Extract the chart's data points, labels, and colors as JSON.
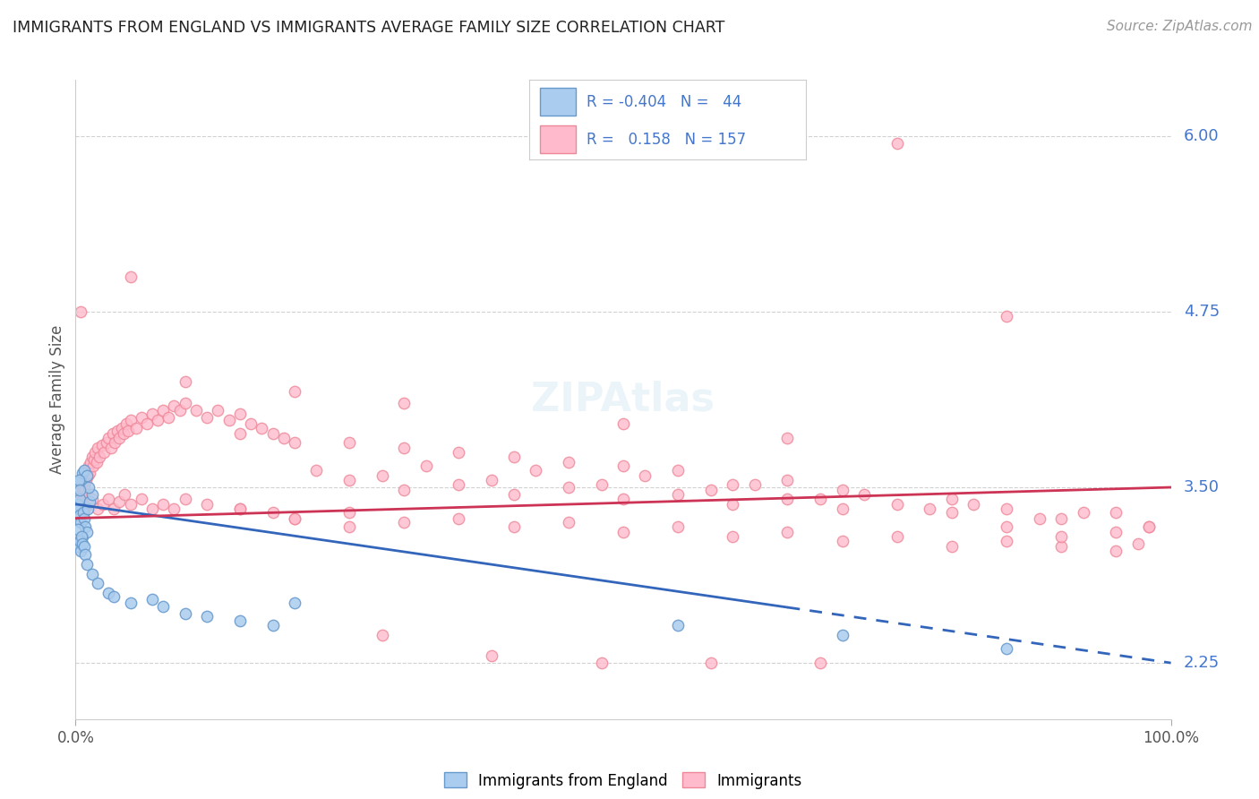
{
  "title": "IMMIGRANTS FROM ENGLAND VS IMMIGRANTS AVERAGE FAMILY SIZE CORRELATION CHART",
  "source": "Source: ZipAtlas.com",
  "ylabel": "Average Family Size",
  "xlim": [
    0,
    100
  ],
  "ylim": [
    1.85,
    6.4
  ],
  "yticks": [
    2.25,
    3.5,
    4.75,
    6.0
  ],
  "blue_R": -0.404,
  "blue_N": 44,
  "pink_R": 0.158,
  "pink_N": 157,
  "blue_scatter": [
    [
      0.2,
      3.38
    ],
    [
      0.3,
      3.35
    ],
    [
      0.35,
      3.42
    ],
    [
      0.4,
      3.3
    ],
    [
      0.5,
      3.25
    ],
    [
      0.6,
      3.15
    ],
    [
      0.7,
      3.32
    ],
    [
      0.8,
      3.28
    ],
    [
      0.9,
      3.22
    ],
    [
      1.0,
      3.18
    ],
    [
      1.1,
      3.35
    ],
    [
      1.3,
      3.4
    ],
    [
      1.5,
      3.45
    ],
    [
      0.5,
      3.55
    ],
    [
      0.6,
      3.6
    ],
    [
      0.8,
      3.62
    ],
    [
      1.0,
      3.58
    ],
    [
      1.2,
      3.5
    ],
    [
      0.3,
      3.55
    ],
    [
      0.4,
      3.48
    ],
    [
      0.2,
      3.2
    ],
    [
      0.25,
      3.08
    ],
    [
      0.35,
      3.12
    ],
    [
      0.45,
      3.05
    ],
    [
      0.55,
      3.15
    ],
    [
      0.65,
      3.1
    ],
    [
      0.75,
      3.08
    ],
    [
      0.85,
      3.02
    ],
    [
      1.0,
      2.95
    ],
    [
      1.5,
      2.88
    ],
    [
      2.0,
      2.82
    ],
    [
      3.0,
      2.75
    ],
    [
      3.5,
      2.72
    ],
    [
      5.0,
      2.68
    ],
    [
      7.0,
      2.7
    ],
    [
      8.0,
      2.65
    ],
    [
      10.0,
      2.6
    ],
    [
      12.0,
      2.58
    ],
    [
      15.0,
      2.55
    ],
    [
      18.0,
      2.52
    ],
    [
      20.0,
      2.68
    ],
    [
      55.0,
      2.52
    ],
    [
      70.0,
      2.45
    ],
    [
      85.0,
      2.35
    ]
  ],
  "pink_scatter": [
    [
      0.1,
      3.3
    ],
    [
      0.15,
      3.35
    ],
    [
      0.2,
      3.4
    ],
    [
      0.25,
      3.32
    ],
    [
      0.3,
      3.45
    ],
    [
      0.35,
      3.38
    ],
    [
      0.4,
      3.42
    ],
    [
      0.45,
      3.5
    ],
    [
      0.5,
      3.48
    ],
    [
      0.55,
      3.52
    ],
    [
      0.6,
      3.45
    ],
    [
      0.65,
      3.55
    ],
    [
      0.7,
      3.5
    ],
    [
      0.75,
      3.58
    ],
    [
      0.8,
      3.52
    ],
    [
      0.85,
      3.6
    ],
    [
      0.9,
      3.48
    ],
    [
      0.95,
      3.55
    ],
    [
      1.0,
      3.62
    ],
    [
      1.1,
      3.58
    ],
    [
      1.2,
      3.65
    ],
    [
      1.3,
      3.6
    ],
    [
      1.4,
      3.68
    ],
    [
      1.5,
      3.72
    ],
    [
      1.6,
      3.65
    ],
    [
      1.7,
      3.7
    ],
    [
      1.8,
      3.75
    ],
    [
      1.9,
      3.68
    ],
    [
      2.0,
      3.78
    ],
    [
      2.2,
      3.72
    ],
    [
      2.4,
      3.8
    ],
    [
      2.6,
      3.75
    ],
    [
      2.8,
      3.82
    ],
    [
      3.0,
      3.85
    ],
    [
      3.2,
      3.78
    ],
    [
      3.4,
      3.88
    ],
    [
      3.6,
      3.82
    ],
    [
      3.8,
      3.9
    ],
    [
      4.0,
      3.85
    ],
    [
      4.2,
      3.92
    ],
    [
      4.4,
      3.88
    ],
    [
      4.6,
      3.95
    ],
    [
      4.8,
      3.9
    ],
    [
      5.0,
      3.98
    ],
    [
      5.5,
      3.92
    ],
    [
      6.0,
      4.0
    ],
    [
      6.5,
      3.95
    ],
    [
      7.0,
      4.02
    ],
    [
      7.5,
      3.98
    ],
    [
      8.0,
      4.05
    ],
    [
      8.5,
      4.0
    ],
    [
      9.0,
      4.08
    ],
    [
      9.5,
      4.05
    ],
    [
      10.0,
      4.1
    ],
    [
      11.0,
      4.05
    ],
    [
      12.0,
      4.0
    ],
    [
      13.0,
      4.05
    ],
    [
      14.0,
      3.98
    ],
    [
      15.0,
      4.02
    ],
    [
      16.0,
      3.95
    ],
    [
      17.0,
      3.92
    ],
    [
      18.0,
      3.88
    ],
    [
      19.0,
      3.85
    ],
    [
      20.0,
      3.82
    ],
    [
      0.2,
      3.32
    ],
    [
      0.3,
      3.28
    ],
    [
      0.4,
      3.35
    ],
    [
      0.5,
      3.3
    ],
    [
      0.6,
      3.38
    ],
    [
      0.7,
      3.42
    ],
    [
      0.8,
      3.35
    ],
    [
      0.9,
      3.4
    ],
    [
      1.0,
      3.45
    ],
    [
      1.2,
      3.38
    ],
    [
      1.5,
      3.42
    ],
    [
      2.0,
      3.35
    ],
    [
      2.5,
      3.38
    ],
    [
      3.0,
      3.42
    ],
    [
      3.5,
      3.35
    ],
    [
      4.0,
      3.4
    ],
    [
      4.5,
      3.45
    ],
    [
      5.0,
      3.38
    ],
    [
      6.0,
      3.42
    ],
    [
      7.0,
      3.35
    ],
    [
      8.0,
      3.38
    ],
    [
      9.0,
      3.35
    ],
    [
      10.0,
      3.42
    ],
    [
      12.0,
      3.38
    ],
    [
      15.0,
      3.35
    ],
    [
      18.0,
      3.32
    ],
    [
      20.0,
      3.28
    ],
    [
      25.0,
      3.32
    ],
    [
      30.0,
      3.25
    ],
    [
      35.0,
      3.28
    ],
    [
      40.0,
      3.22
    ],
    [
      45.0,
      3.25
    ],
    [
      50.0,
      3.18
    ],
    [
      55.0,
      3.22
    ],
    [
      60.0,
      3.15
    ],
    [
      65.0,
      3.18
    ],
    [
      70.0,
      3.12
    ],
    [
      75.0,
      3.15
    ],
    [
      80.0,
      3.08
    ],
    [
      85.0,
      3.12
    ],
    [
      90.0,
      3.08
    ],
    [
      95.0,
      3.05
    ],
    [
      97.0,
      3.1
    ],
    [
      25.0,
      3.55
    ],
    [
      30.0,
      3.48
    ],
    [
      35.0,
      3.52
    ],
    [
      40.0,
      3.45
    ],
    [
      45.0,
      3.5
    ],
    [
      50.0,
      3.42
    ],
    [
      55.0,
      3.45
    ],
    [
      60.0,
      3.38
    ],
    [
      65.0,
      3.42
    ],
    [
      70.0,
      3.35
    ],
    [
      75.0,
      3.38
    ],
    [
      80.0,
      3.32
    ],
    [
      85.0,
      3.35
    ],
    [
      90.0,
      3.28
    ],
    [
      95.0,
      3.32
    ],
    [
      22.0,
      3.62
    ],
    [
      28.0,
      3.58
    ],
    [
      32.0,
      3.65
    ],
    [
      38.0,
      3.55
    ],
    [
      42.0,
      3.62
    ],
    [
      48.0,
      3.52
    ],
    [
      52.0,
      3.58
    ],
    [
      58.0,
      3.48
    ],
    [
      62.0,
      3.52
    ],
    [
      68.0,
      3.42
    ],
    [
      72.0,
      3.45
    ],
    [
      78.0,
      3.35
    ],
    [
      82.0,
      3.38
    ],
    [
      88.0,
      3.28
    ],
    [
      92.0,
      3.32
    ],
    [
      98.0,
      3.22
    ],
    [
      30.0,
      3.78
    ],
    [
      40.0,
      3.72
    ],
    [
      50.0,
      3.65
    ],
    [
      60.0,
      3.52
    ],
    [
      70.0,
      3.48
    ],
    [
      80.0,
      3.42
    ],
    [
      15.0,
      3.88
    ],
    [
      25.0,
      3.82
    ],
    [
      35.0,
      3.75
    ],
    [
      45.0,
      3.68
    ],
    [
      55.0,
      3.62
    ],
    [
      65.0,
      3.55
    ],
    [
      10.0,
      4.25
    ],
    [
      20.0,
      4.18
    ],
    [
      30.0,
      4.1
    ],
    [
      50.0,
      3.95
    ],
    [
      65.0,
      3.85
    ],
    [
      85.0,
      3.22
    ],
    [
      90.0,
      3.15
    ],
    [
      95.0,
      3.18
    ],
    [
      0.5,
      4.75
    ],
    [
      5.0,
      5.0
    ],
    [
      75.0,
      5.95
    ],
    [
      85.0,
      4.72
    ],
    [
      98.0,
      3.22
    ],
    [
      15.0,
      3.35
    ],
    [
      20.0,
      3.28
    ],
    [
      25.0,
      3.22
    ],
    [
      28.0,
      2.45
    ],
    [
      38.0,
      2.3
    ],
    [
      48.0,
      2.25
    ],
    [
      58.0,
      2.25
    ],
    [
      68.0,
      2.25
    ]
  ],
  "blue_line_y_start": 3.38,
  "blue_line_y_end": 2.25,
  "blue_solid_end_x": 65,
  "pink_line_y_start": 3.28,
  "pink_line_y_end": 3.5,
  "background_color": "#ffffff",
  "grid_color": "#cccccc",
  "blue_color": "#aaccee",
  "blue_edge_color": "#6699cc",
  "pink_color": "#ffbbcc",
  "pink_edge_color": "#ee8899",
  "blue_trend_color": "#3366bb",
  "pink_trend_color": "#cc3355",
  "right_label_color": "#4477cc",
  "marker_size": 80
}
